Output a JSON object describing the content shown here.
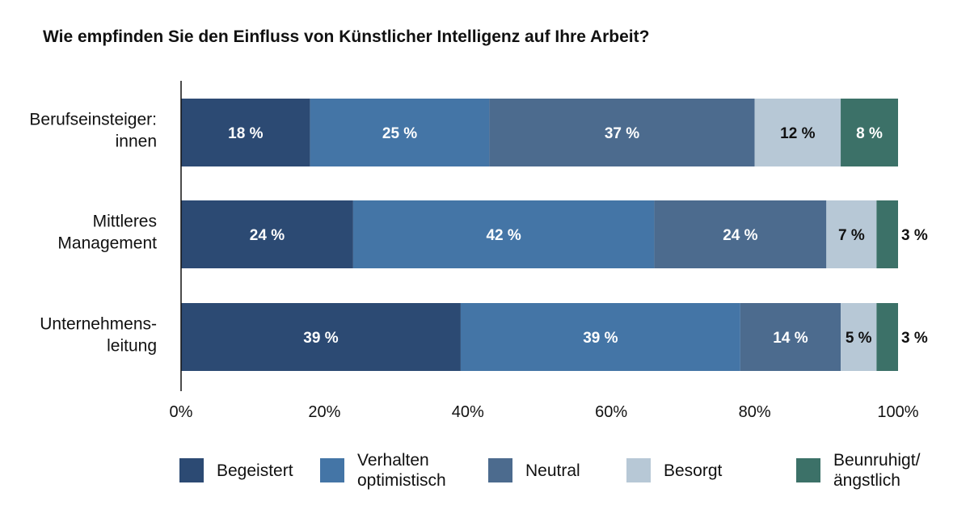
{
  "chart_data": {
    "type": "bar",
    "orientation": "horizontal",
    "stacked": true,
    "title": "Wie empfinden Sie den Einfluss von Künstlicher Intelligenz auf Ihre Arbeit?",
    "categories": [
      "Berufseinsteiger:\ninnen",
      "Mittleres\nManagement",
      "Unternehmens-\nleitung"
    ],
    "xlim": [
      0,
      100
    ],
    "x_ticks": [
      "0%",
      "20%",
      "40%",
      "60%",
      "80%",
      "100%"
    ],
    "grid": false,
    "legend_position": "bottom",
    "series": [
      {
        "name": "Begeistert",
        "color": "#2c4a73",
        "values": [
          18,
          24,
          39
        ],
        "labels": [
          "18 %",
          "24 %",
          "39 %"
        ]
      },
      {
        "name": "Verhalten\noptimistisch",
        "color": "#4475a6",
        "values": [
          25,
          42,
          39
        ],
        "labels": [
          "25 %",
          "42 %",
          "39 %"
        ]
      },
      {
        "name": "Neutral",
        "color": "#4c6b8e",
        "values": [
          37,
          24,
          14
        ],
        "labels": [
          "37 %",
          "24 %",
          "14 %"
        ]
      },
      {
        "name": "Besorgt",
        "color": "#b7c8d6",
        "values": [
          12,
          7,
          5
        ],
        "labels": [
          "12 %",
          "7 %",
          "5 %"
        ]
      },
      {
        "name": "Beunruhigt/\nängstlich",
        "color": "#3c7168",
        "values": [
          8,
          3,
          3
        ],
        "labels": [
          "8 %",
          "3 %",
          "3 %"
        ]
      }
    ]
  }
}
